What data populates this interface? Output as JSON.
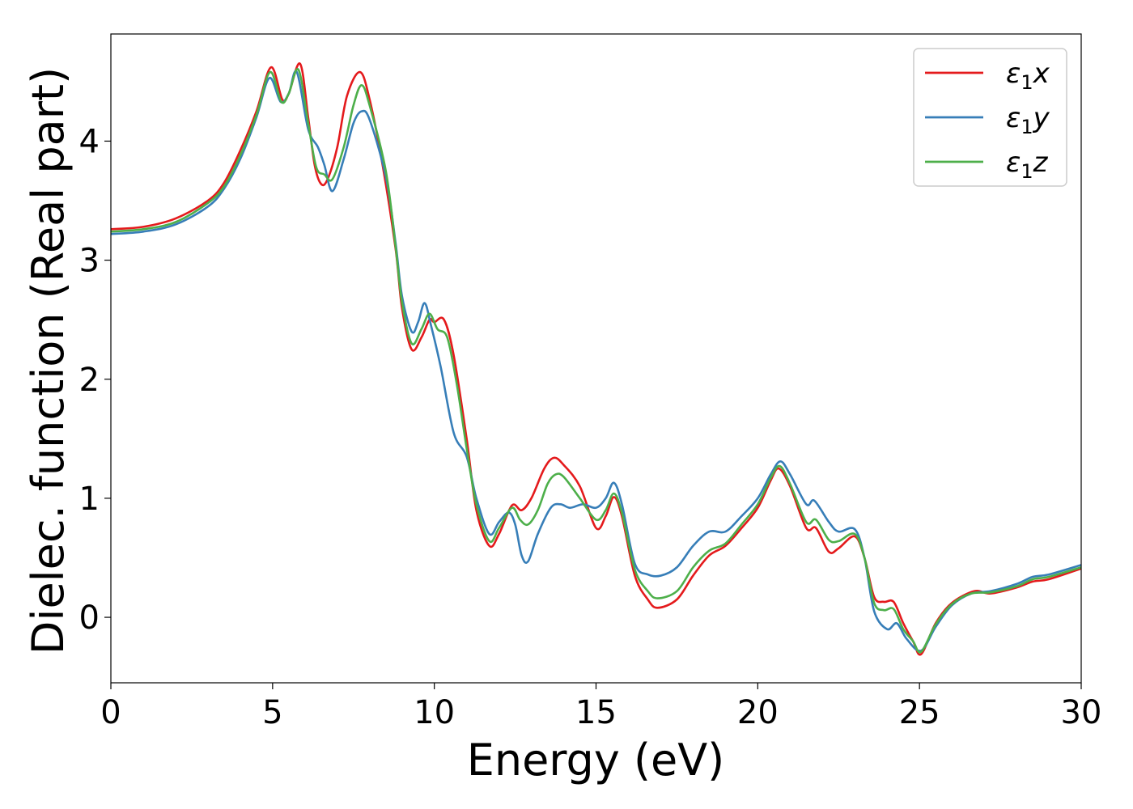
{
  "chart_data": {
    "type": "line",
    "xlabel": "Energy (eV)",
    "ylabel": "Dielec. function (Real part)",
    "xlim": [
      0,
      30
    ],
    "ylim": [
      -0.55,
      4.9
    ],
    "xticks": [
      "0",
      "5",
      "10",
      "15",
      "20",
      "25",
      "30"
    ],
    "yticks": [
      "0",
      "1",
      "2",
      "3",
      "4"
    ],
    "grid": false,
    "legend_position": "top-right",
    "series": [
      {
        "name": "ε1x",
        "legend_base": "ε",
        "legend_sub": "1",
        "legend_tail": "x",
        "color": "#e41a1c",
        "points": [
          [
            0,
            3.26
          ],
          [
            1,
            3.28
          ],
          [
            2,
            3.35
          ],
          [
            3,
            3.5
          ],
          [
            3.5,
            3.65
          ],
          [
            4,
            3.92
          ],
          [
            4.5,
            4.25
          ],
          [
            4.95,
            4.62
          ],
          [
            5.3,
            4.35
          ],
          [
            5.5,
            4.4
          ],
          [
            5.85,
            4.65
          ],
          [
            6.1,
            4.2
          ],
          [
            6.3,
            3.8
          ],
          [
            6.5,
            3.64
          ],
          [
            6.7,
            3.68
          ],
          [
            7.0,
            3.95
          ],
          [
            7.3,
            4.38
          ],
          [
            7.7,
            4.58
          ],
          [
            8.0,
            4.35
          ],
          [
            8.4,
            3.8
          ],
          [
            8.8,
            3.1
          ],
          [
            9.0,
            2.6
          ],
          [
            9.3,
            2.25
          ],
          [
            9.6,
            2.35
          ],
          [
            9.85,
            2.5
          ],
          [
            10.0,
            2.48
          ],
          [
            10.3,
            2.5
          ],
          [
            10.6,
            2.2
          ],
          [
            11.0,
            1.5
          ],
          [
            11.3,
            0.9
          ],
          [
            11.7,
            0.6
          ],
          [
            12.0,
            0.7
          ],
          [
            12.4,
            0.94
          ],
          [
            12.7,
            0.9
          ],
          [
            13.0,
            1.0
          ],
          [
            13.4,
            1.25
          ],
          [
            13.7,
            1.34
          ],
          [
            14.0,
            1.28
          ],
          [
            14.5,
            1.1
          ],
          [
            15.0,
            0.75
          ],
          [
            15.3,
            0.85
          ],
          [
            15.55,
            1.01
          ],
          [
            15.8,
            0.85
          ],
          [
            16.2,
            0.35
          ],
          [
            16.6,
            0.15
          ],
          [
            16.9,
            0.08
          ],
          [
            17.5,
            0.15
          ],
          [
            18.0,
            0.35
          ],
          [
            18.5,
            0.52
          ],
          [
            19.0,
            0.6
          ],
          [
            19.5,
            0.75
          ],
          [
            20.0,
            0.92
          ],
          [
            20.4,
            1.15
          ],
          [
            20.65,
            1.25
          ],
          [
            21.0,
            1.1
          ],
          [
            21.5,
            0.75
          ],
          [
            21.8,
            0.75
          ],
          [
            22.2,
            0.55
          ],
          [
            22.5,
            0.58
          ],
          [
            23.0,
            0.68
          ],
          [
            23.3,
            0.5
          ],
          [
            23.6,
            0.17
          ],
          [
            23.9,
            0.13
          ],
          [
            24.2,
            0.13
          ],
          [
            24.5,
            -0.05
          ],
          [
            24.8,
            -0.2
          ],
          [
            25.05,
            -0.31
          ],
          [
            25.5,
            -0.05
          ],
          [
            26.0,
            0.12
          ],
          [
            26.7,
            0.22
          ],
          [
            27.2,
            0.2
          ],
          [
            28.0,
            0.25
          ],
          [
            28.5,
            0.3
          ],
          [
            29.0,
            0.32
          ],
          [
            30.0,
            0.41
          ]
        ]
      },
      {
        "name": "ε1y",
        "legend_base": "ε",
        "legend_sub": "1",
        "legend_tail": "y",
        "color": "#377eb8",
        "points": [
          [
            0,
            3.22
          ],
          [
            1,
            3.24
          ],
          [
            2,
            3.3
          ],
          [
            3,
            3.45
          ],
          [
            3.5,
            3.6
          ],
          [
            4,
            3.85
          ],
          [
            4.5,
            4.2
          ],
          [
            4.9,
            4.53
          ],
          [
            5.25,
            4.33
          ],
          [
            5.5,
            4.4
          ],
          [
            5.75,
            4.58
          ],
          [
            6.1,
            4.1
          ],
          [
            6.4,
            3.95
          ],
          [
            6.6,
            3.8
          ],
          [
            6.85,
            3.58
          ],
          [
            7.2,
            3.85
          ],
          [
            7.5,
            4.15
          ],
          [
            7.75,
            4.25
          ],
          [
            8.0,
            4.18
          ],
          [
            8.5,
            3.7
          ],
          [
            8.8,
            3.15
          ],
          [
            9.0,
            2.7
          ],
          [
            9.3,
            2.4
          ],
          [
            9.5,
            2.48
          ],
          [
            9.7,
            2.64
          ],
          [
            9.9,
            2.45
          ],
          [
            10.2,
            2.1
          ],
          [
            10.6,
            1.55
          ],
          [
            11.0,
            1.35
          ],
          [
            11.3,
            1.0
          ],
          [
            11.7,
            0.7
          ],
          [
            12.0,
            0.8
          ],
          [
            12.3,
            0.88
          ],
          [
            12.5,
            0.78
          ],
          [
            12.7,
            0.52
          ],
          [
            12.9,
            0.47
          ],
          [
            13.2,
            0.7
          ],
          [
            13.6,
            0.92
          ],
          [
            13.9,
            0.95
          ],
          [
            14.2,
            0.92
          ],
          [
            14.6,
            0.95
          ],
          [
            15.0,
            0.92
          ],
          [
            15.3,
            1.0
          ],
          [
            15.55,
            1.13
          ],
          [
            15.8,
            0.95
          ],
          [
            16.2,
            0.45
          ],
          [
            16.6,
            0.36
          ],
          [
            17.0,
            0.35
          ],
          [
            17.5,
            0.42
          ],
          [
            18.0,
            0.6
          ],
          [
            18.5,
            0.72
          ],
          [
            19.0,
            0.72
          ],
          [
            19.5,
            0.85
          ],
          [
            20.0,
            1.0
          ],
          [
            20.4,
            1.2
          ],
          [
            20.7,
            1.31
          ],
          [
            21.0,
            1.2
          ],
          [
            21.5,
            0.95
          ],
          [
            21.75,
            0.98
          ],
          [
            22.2,
            0.8
          ],
          [
            22.5,
            0.72
          ],
          [
            23.0,
            0.74
          ],
          [
            23.3,
            0.5
          ],
          [
            23.6,
            0.05
          ],
          [
            24.0,
            -0.1
          ],
          [
            24.3,
            -0.05
          ],
          [
            24.6,
            -0.18
          ],
          [
            25.05,
            -0.28
          ],
          [
            25.5,
            -0.08
          ],
          [
            26.0,
            0.1
          ],
          [
            26.6,
            0.2
          ],
          [
            27.2,
            0.22
          ],
          [
            28.0,
            0.28
          ],
          [
            28.5,
            0.34
          ],
          [
            29.0,
            0.36
          ],
          [
            30.0,
            0.44
          ]
        ]
      },
      {
        "name": "ε1z",
        "legend_base": "ε",
        "legend_sub": "1",
        "legend_tail": "z",
        "color": "#4daf4a",
        "points": [
          [
            0,
            3.24
          ],
          [
            1,
            3.26
          ],
          [
            2,
            3.32
          ],
          [
            3,
            3.48
          ],
          [
            3.5,
            3.62
          ],
          [
            4,
            3.88
          ],
          [
            4.5,
            4.22
          ],
          [
            4.92,
            4.58
          ],
          [
            5.27,
            4.33
          ],
          [
            5.5,
            4.4
          ],
          [
            5.8,
            4.6
          ],
          [
            6.1,
            4.15
          ],
          [
            6.35,
            3.78
          ],
          [
            6.6,
            3.72
          ],
          [
            6.85,
            3.68
          ],
          [
            7.2,
            3.95
          ],
          [
            7.5,
            4.3
          ],
          [
            7.75,
            4.47
          ],
          [
            8.0,
            4.3
          ],
          [
            8.5,
            3.75
          ],
          [
            8.8,
            3.12
          ],
          [
            9.0,
            2.65
          ],
          [
            9.3,
            2.3
          ],
          [
            9.6,
            2.42
          ],
          [
            9.85,
            2.55
          ],
          [
            10.1,
            2.42
          ],
          [
            10.4,
            2.35
          ],
          [
            10.7,
            1.95
          ],
          [
            11.0,
            1.42
          ],
          [
            11.3,
            0.95
          ],
          [
            11.7,
            0.64
          ],
          [
            12.0,
            0.75
          ],
          [
            12.4,
            0.92
          ],
          [
            12.65,
            0.82
          ],
          [
            12.9,
            0.78
          ],
          [
            13.2,
            0.9
          ],
          [
            13.5,
            1.12
          ],
          [
            13.75,
            1.2
          ],
          [
            14.0,
            1.18
          ],
          [
            14.5,
            1.0
          ],
          [
            15.0,
            0.82
          ],
          [
            15.3,
            0.9
          ],
          [
            15.55,
            1.04
          ],
          [
            15.8,
            0.88
          ],
          [
            16.2,
            0.4
          ],
          [
            16.6,
            0.22
          ],
          [
            16.9,
            0.16
          ],
          [
            17.5,
            0.22
          ],
          [
            18.0,
            0.42
          ],
          [
            18.5,
            0.56
          ],
          [
            19.0,
            0.62
          ],
          [
            19.5,
            0.78
          ],
          [
            20.0,
            0.95
          ],
          [
            20.4,
            1.17
          ],
          [
            20.68,
            1.27
          ],
          [
            21.0,
            1.12
          ],
          [
            21.5,
            0.8
          ],
          [
            21.8,
            0.82
          ],
          [
            22.2,
            0.65
          ],
          [
            22.5,
            0.64
          ],
          [
            23.0,
            0.7
          ],
          [
            23.3,
            0.5
          ],
          [
            23.6,
            0.12
          ],
          [
            23.9,
            0.06
          ],
          [
            24.2,
            0.07
          ],
          [
            24.5,
            -0.1
          ],
          [
            24.8,
            -0.2
          ],
          [
            25.05,
            -0.29
          ],
          [
            25.5,
            -0.06
          ],
          [
            26.0,
            0.11
          ],
          [
            26.6,
            0.2
          ],
          [
            27.2,
            0.21
          ],
          [
            28.0,
            0.26
          ],
          [
            28.5,
            0.32
          ],
          [
            29.0,
            0.34
          ],
          [
            30.0,
            0.42
          ]
        ]
      }
    ]
  }
}
